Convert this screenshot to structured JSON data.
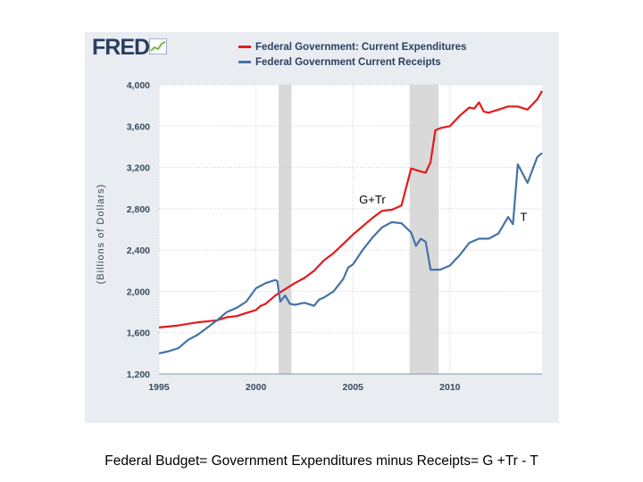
{
  "brand": {
    "logo_text": "FRED"
  },
  "caption": "Federal Budget= Government Expenditures minus Receipts= G +Tr - T",
  "colors": {
    "expenditures": "#e41a1c",
    "receipts": "#4572a7",
    "recession": "#d9d9d9",
    "panel": "#e9edf2"
  },
  "chart_data": {
    "type": "line",
    "ylabel": "(Billions of Dollars)",
    "xlabel": "",
    "xlim": [
      1995.0,
      2014.75
    ],
    "ylim": [
      1200,
      4000
    ],
    "x_ticks": [
      1995,
      2000,
      2005,
      2010
    ],
    "y_ticks": [
      1200,
      1600,
      2000,
      2400,
      2800,
      3200,
      3600,
      4000
    ],
    "y_tick_labels": [
      "1,200",
      "1,600",
      "2,000",
      "2,400",
      "2,800",
      "3,200",
      "3,600",
      "4,000"
    ],
    "grid": true,
    "legend": {
      "placement": "top"
    },
    "recessions": [
      [
        2001.17,
        2001.83
      ],
      [
        2007.92,
        2009.42
      ]
    ],
    "annotations": [
      {
        "text": "G+Tr",
        "x": 2006.0,
        "y": 2850
      },
      {
        "text": "T",
        "x": 2013.8,
        "y": 2680
      }
    ],
    "series": [
      {
        "name": "Federal Government: Current Expenditures",
        "color": "#e41a1c",
        "x": [
          1995.0,
          1996.0,
          1997.0,
          1998.0,
          1998.5,
          1999.0,
          1999.5,
          2000.0,
          2000.25,
          2000.5,
          2001.0,
          2001.5,
          2002.0,
          2002.5,
          2003.0,
          2003.5,
          2004.0,
          2004.5,
          2005.0,
          2005.5,
          2006.0,
          2006.5,
          2007.0,
          2007.5,
          2008.0,
          2008.5,
          2008.75,
          2009.0,
          2009.25,
          2009.5,
          2010.0,
          2010.5,
          2011.0,
          2011.25,
          2011.5,
          2011.75,
          2012.0,
          2012.5,
          2013.0,
          2013.5,
          2014.0,
          2014.5,
          2014.75
        ],
        "y": [
          1650,
          1670,
          1700,
          1720,
          1750,
          1760,
          1790,
          1820,
          1860,
          1880,
          1960,
          2020,
          2080,
          2130,
          2200,
          2300,
          2370,
          2460,
          2550,
          2630,
          2710,
          2780,
          2790,
          2830,
          3190,
          3160,
          3150,
          3250,
          3560,
          3580,
          3600,
          3700,
          3780,
          3770,
          3830,
          3740,
          3730,
          3760,
          3790,
          3790,
          3760,
          3860,
          3940
        ]
      },
      {
        "name": "Federal Government Current Receipts",
        "color": "#4572a7",
        "x": [
          1995.0,
          1995.5,
          1996.0,
          1996.5,
          1997.0,
          1997.5,
          1998.0,
          1998.5,
          1999.0,
          1999.5,
          2000.0,
          2000.5,
          2001.0,
          2001.1,
          2001.25,
          2001.5,
          2001.75,
          2002.0,
          2002.5,
          2003.0,
          2003.25,
          2003.5,
          2004.0,
          2004.5,
          2004.75,
          2005.0,
          2005.5,
          2006.0,
          2006.5,
          2007.0,
          2007.5,
          2008.0,
          2008.25,
          2008.5,
          2008.75,
          2009.0,
          2009.5,
          2010.0,
          2010.5,
          2011.0,
          2011.5,
          2012.0,
          2012.5,
          2013.0,
          2013.25,
          2013.5,
          2014.0,
          2014.5,
          2014.75
        ],
        "y": [
          1400,
          1420,
          1450,
          1530,
          1580,
          1650,
          1720,
          1800,
          1840,
          1900,
          2030,
          2080,
          2110,
          2100,
          1900,
          1960,
          1880,
          1870,
          1890,
          1860,
          1920,
          1940,
          2000,
          2120,
          2230,
          2260,
          2400,
          2520,
          2620,
          2670,
          2660,
          2570,
          2440,
          2510,
          2480,
          2210,
          2210,
          2250,
          2350,
          2470,
          2510,
          2510,
          2560,
          2720,
          2650,
          3230,
          3050,
          3300,
          3340
        ]
      }
    ]
  }
}
